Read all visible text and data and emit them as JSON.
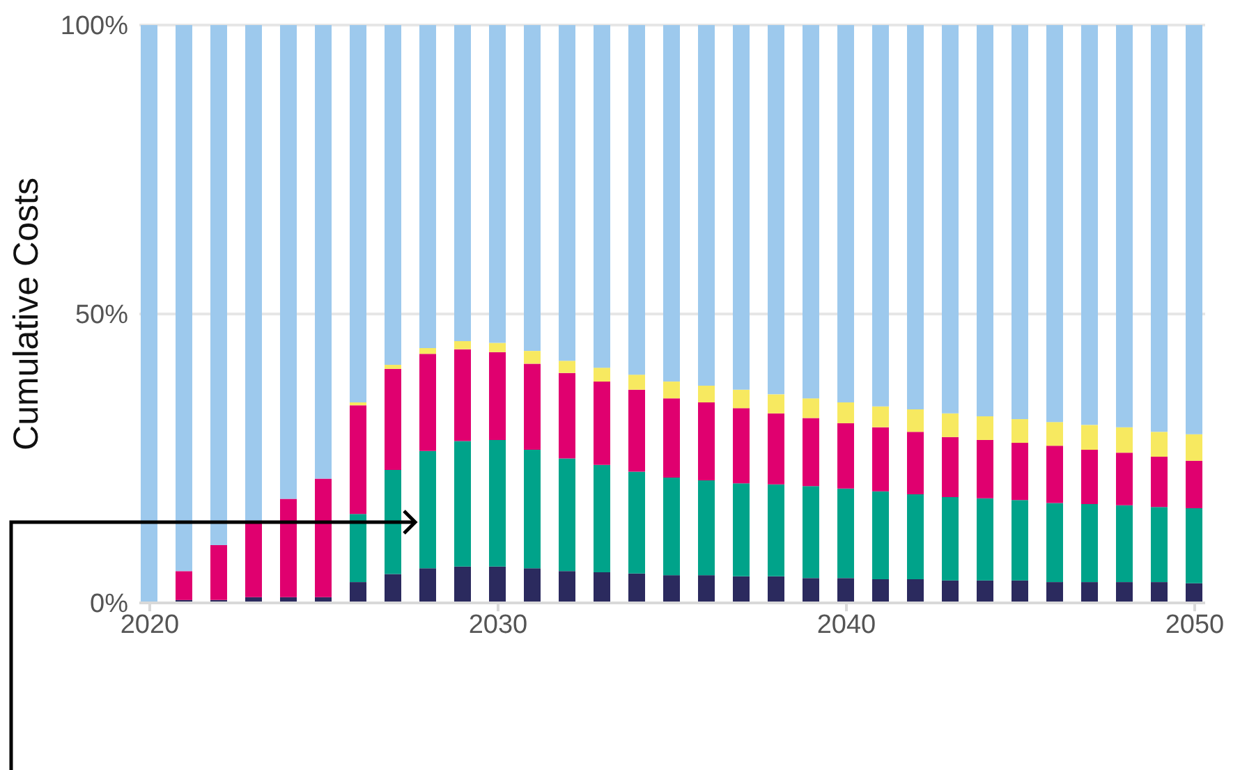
{
  "chart_data": {
    "type": "bar",
    "stacked": true,
    "ylabel": "Cumulative Costs",
    "x": [
      2020,
      2021,
      2022,
      2023,
      2024,
      2025,
      2026,
      2027,
      2028,
      2029,
      2030,
      2031,
      2032,
      2033,
      2034,
      2035,
      2036,
      2037,
      2038,
      2039,
      2040,
      2041,
      2042,
      2043,
      2044,
      2045,
      2046,
      2047,
      2048,
      2049,
      2050
    ],
    "xlim": [
      2019.7,
      2050.3
    ],
    "xticks": [
      2020,
      2030,
      2040,
      2050
    ],
    "ylim": [
      0,
      100
    ],
    "yticks": [
      {
        "value": 0,
        "label": "0%"
      },
      {
        "value": 50,
        "label": "50%"
      },
      {
        "value": 100,
        "label": "100%"
      }
    ],
    "grid": "y",
    "legend": false,
    "series": [
      {
        "color": "#2b2a5e",
        "values": [
          0,
          0.5,
          0.5,
          1,
          1,
          1,
          3.6,
          5,
          6,
          6.3,
          6.3,
          6,
          5.5,
          5.3,
          5.1,
          4.8,
          4.8,
          4.6,
          4.6,
          4.3,
          4.3,
          4.1,
          4.1,
          3.9,
          3.9,
          3.9,
          3.6,
          3.6,
          3.6,
          3.6,
          3.4
        ]
      },
      {
        "color": "#00a38a",
        "values": [
          0,
          0,
          0,
          0,
          0,
          0,
          11.8,
          18,
          20.3,
          21.7,
          21.9,
          20.5,
          19.5,
          18.6,
          17.6,
          16.9,
          16.4,
          16.1,
          15.9,
          15.9,
          15.5,
          15.2,
          14.7,
          14.4,
          14.2,
          13.9,
          13.7,
          13.5,
          13.3,
          13,
          13
        ]
      },
      {
        "color": "#e0006f",
        "values": [
          0,
          5,
          9.5,
          13,
          17,
          20.5,
          18.8,
          17.5,
          16.8,
          15.9,
          15.2,
          14.9,
          14.8,
          14.4,
          14.2,
          13.7,
          13.5,
          13,
          12.3,
          11.8,
          11.3,
          11.1,
          10.8,
          10.4,
          10.1,
          9.9,
          9.9,
          9.4,
          9.1,
          8.7,
          8.2
        ]
      },
      {
        "color": "#f7e960",
        "values": [
          0,
          0,
          0,
          0,
          0,
          0,
          0.5,
          0.7,
          1,
          1.4,
          1.6,
          2.2,
          2.1,
          2.4,
          2.6,
          2.9,
          2.9,
          3.2,
          3.3,
          3.4,
          3.6,
          3.6,
          3.9,
          4.1,
          4.1,
          4.1,
          4.1,
          4.3,
          4.4,
          4.3,
          4.6
        ]
      },
      {
        "color": "#9dc9ed",
        "values": [
          100,
          94.5,
          90,
          86,
          82,
          78.5,
          65.3,
          58.8,
          55.9,
          54.7,
          55,
          56.4,
          58.1,
          59.3,
          60.5,
          61.7,
          62.4,
          63.1,
          63.9,
          64.6,
          65.3,
          66,
          66.5,
          67.2,
          67.7,
          68.2,
          68.7,
          69.2,
          69.6,
          70.4,
          70.8
        ]
      }
    ]
  }
}
